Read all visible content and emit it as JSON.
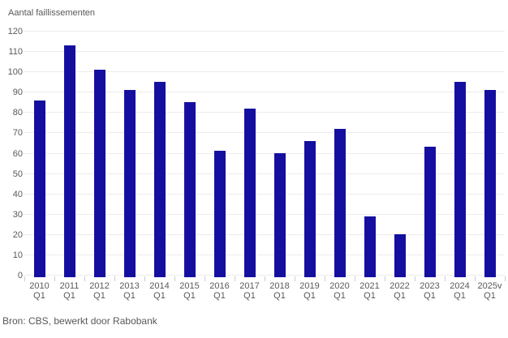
{
  "chart": {
    "title": "Aantal faillissementen",
    "source": "Bron: CBS, bewerkt door Rabobank"
  },
  "chart_data": {
    "type": "bar",
    "title": "Aantal faillissementen",
    "categories": [
      "2010 Q1",
      "2011 Q1",
      "2012 Q1",
      "2013 Q1",
      "2014 Q1",
      "2015 Q1",
      "2016 Q1",
      "2017 Q1",
      "2018 Q1",
      "2019 Q1",
      "2020 Q1",
      "2021 Q1",
      "2022 Q1",
      "2023 Q1",
      "2024 Q1",
      "2025v Q1"
    ],
    "values": [
      87,
      114,
      102,
      92,
      96,
      86,
      62,
      83,
      61,
      67,
      73,
      30,
      21,
      64,
      96,
      92
    ],
    "xlabel": "",
    "ylabel": "Aantal faillissementen",
    "ylim": [
      0,
      120
    ],
    "ytick_step": 10,
    "yticks": [
      0,
      10,
      20,
      30,
      40,
      50,
      60,
      70,
      80,
      90,
      100,
      110,
      120
    ],
    "grid": true,
    "legend": "none",
    "bar_color": "#150FA0",
    "text_color": "#595959",
    "gridline_color": "#ececec",
    "source": "Bron: CBS, bewerkt door Rabobank"
  }
}
